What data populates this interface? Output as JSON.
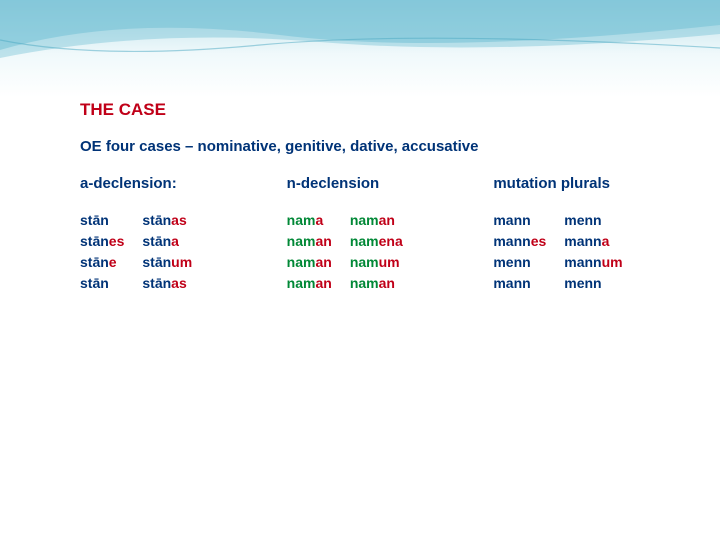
{
  "colors": {
    "red": "#c00018",
    "blue": "#003377",
    "green": "#008836",
    "background_top": "#b8dde8",
    "background_bottom": "#ffffff"
  },
  "title": "THE CASE",
  "subtitle": "OE four cases – nominative, genitive, dative, accusative",
  "sections": [
    {
      "header": "a-declension:",
      "cols": [
        [
          {
            "stem": "stān",
            "suf": "",
            "stemColor": "blue",
            "sufColor": "red"
          },
          {
            "stem": "stān",
            "suf": "es",
            "stemColor": "blue",
            "sufColor": "red"
          },
          {
            "stem": "stān",
            "suf": "e",
            "stemColor": "blue",
            "sufColor": "red"
          },
          {
            "stem": "stān",
            "suf": "",
            "stemColor": "blue",
            "sufColor": "red"
          }
        ],
        [
          {
            "stem": "stān",
            "suf": "as",
            "stemColor": "blue",
            "sufColor": "red"
          },
          {
            "stem": "stān",
            "suf": "a",
            "stemColor": "blue",
            "sufColor": "red"
          },
          {
            "stem": "stān",
            "suf": "um",
            "stemColor": "blue",
            "sufColor": "red"
          },
          {
            "stem": "stān",
            "suf": "as",
            "stemColor": "blue",
            "sufColor": "red"
          }
        ]
      ]
    },
    {
      "header": "n-declension",
      "cols": [
        [
          {
            "stem": "nam",
            "suf": "a",
            "stemColor": "green",
            "sufColor": "red"
          },
          {
            "stem": "nam",
            "suf": "an",
            "stemColor": "green",
            "sufColor": "red"
          },
          {
            "stem": "nam",
            "suf": "an",
            "stemColor": "green",
            "sufColor": "red"
          },
          {
            "stem": "nam",
            "suf": "an",
            "stemColor": "green",
            "sufColor": "red"
          }
        ],
        [
          {
            "stem": "nam",
            "suf": "an",
            "stemColor": "green",
            "sufColor": "red"
          },
          {
            "stem": "nam",
            "suf": "ena",
            "stemColor": "green",
            "sufColor": "red"
          },
          {
            "stem": "nam",
            "suf": "um",
            "stemColor": "green",
            "sufColor": "red"
          },
          {
            "stem": "nam",
            "suf": "an",
            "stemColor": "green",
            "sufColor": "red"
          }
        ]
      ]
    },
    {
      "header": "mutation plurals",
      "cols": [
        [
          {
            "stem": "mann",
            "suf": "",
            "stemColor": "blue",
            "sufColor": "red"
          },
          {
            "stem": "mann",
            "suf": "es",
            "stemColor": "blue",
            "sufColor": "red"
          },
          {
            "stem": "menn",
            "suf": "",
            "stemColor": "blue",
            "sufColor": "red"
          },
          {
            "stem": "mann",
            "suf": "",
            "stemColor": "blue",
            "sufColor": "red"
          }
        ],
        [
          {
            "stem": "menn",
            "suf": "",
            "stemColor": "blue",
            "sufColor": "red"
          },
          {
            "stem": "mann",
            "suf": "a",
            "stemColor": "blue",
            "sufColor": "red"
          },
          {
            "stem": "mann",
            "suf": "um",
            "stemColor": "blue",
            "sufColor": "red"
          },
          {
            "stem": "menn",
            "suf": "",
            "stemColor": "blue",
            "sufColor": "red"
          }
        ]
      ]
    }
  ]
}
